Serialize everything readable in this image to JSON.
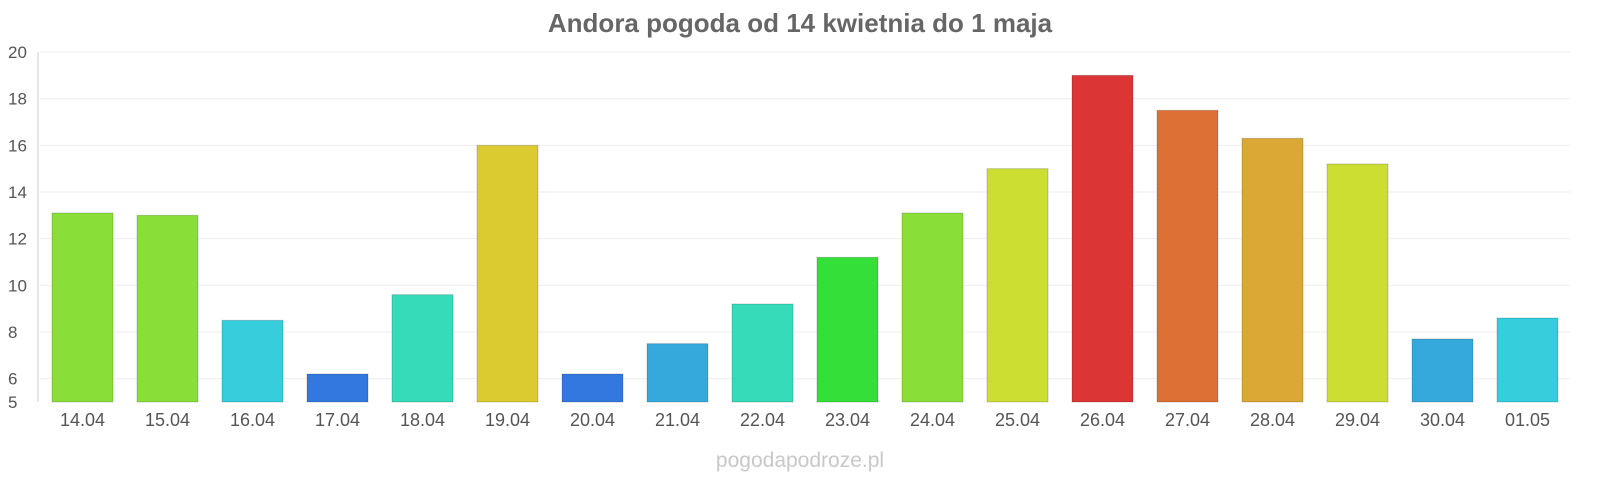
{
  "chart_data": {
    "type": "bar",
    "title": "Andora pogoda od 14 kwietnia do 1 maja",
    "xlabel": "",
    "ylabel": "",
    "ylim": [
      5,
      20
    ],
    "yticks": [
      5,
      6,
      8,
      10,
      12,
      14,
      16,
      18,
      20
    ],
    "grid": true,
    "categories": [
      "14.04",
      "15.04",
      "16.04",
      "17.04",
      "18.04",
      "19.04",
      "20.04",
      "21.04",
      "22.04",
      "23.04",
      "24.04",
      "25.04",
      "26.04",
      "27.04",
      "28.04",
      "29.04",
      "30.04",
      "01.05"
    ],
    "values": [
      13.1,
      13.0,
      8.5,
      6.2,
      9.6,
      16.0,
      6.2,
      7.5,
      9.2,
      11.2,
      13.1,
      15.0,
      19.0,
      17.5,
      16.3,
      15.2,
      7.7,
      8.6
    ],
    "colors": [
      "#8ade38",
      "#8ade38",
      "#36cedc",
      "#3378de",
      "#36dcb9",
      "#dccb30",
      "#3378de",
      "#36a9dc",
      "#36dcb9",
      "#33df38",
      "#8ade38",
      "#cdde32",
      "#dc3535",
      "#dd7035",
      "#dca835",
      "#cdde32",
      "#36a9dc",
      "#36cedc"
    ]
  },
  "watermark": "pogodapodroze.pl"
}
